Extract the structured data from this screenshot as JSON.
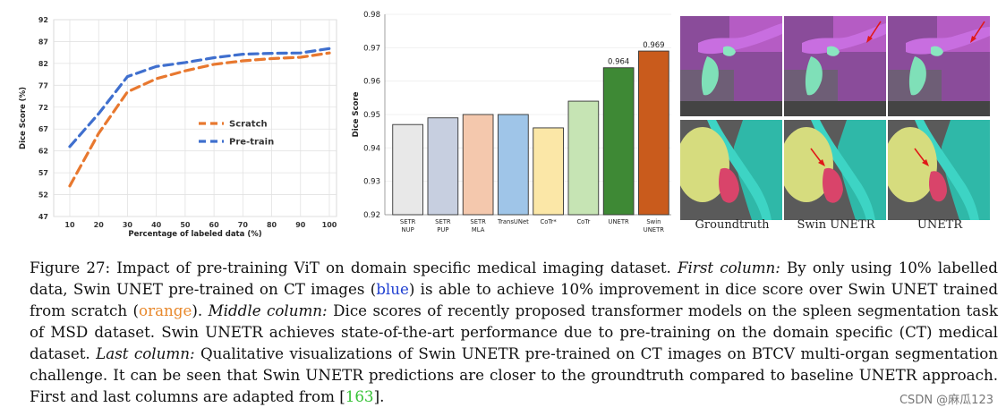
{
  "chart_data": [
    {
      "type": "line",
      "xlabel": "Percentage of labeled data (%)",
      "ylabel": "Dice Score (%)",
      "x": [
        10,
        20,
        30,
        40,
        50,
        60,
        70,
        80,
        90,
        100
      ],
      "ylim": [
        47,
        92
      ],
      "yticks": [
        47,
        52,
        57,
        62,
        67,
        72,
        77,
        82,
        87,
        92
      ],
      "grid": true,
      "legend_position": "center-right",
      "series": [
        {
          "name": "Scratch",
          "color": "#e8782f",
          "style": "dashed",
          "values": [
            54,
            66,
            75.5,
            78.5,
            80.3,
            81.8,
            82.6,
            83.1,
            83.4,
            84.4
          ]
        },
        {
          "name": "Pre-train",
          "color": "#3f6fce",
          "style": "dashed",
          "values": [
            63,
            70.5,
            79,
            81.3,
            82.2,
            83.3,
            84.1,
            84.3,
            84.4,
            85.4
          ]
        }
      ]
    },
    {
      "type": "bar",
      "ylabel": "Dice Score",
      "ylim": [
        0.92,
        0.98
      ],
      "yticks": [
        "0.92",
        "0.93",
        "0.94",
        "0.95",
        "0.96",
        "0.97",
        "0.98"
      ],
      "categories": [
        [
          "SETR",
          "NUP"
        ],
        [
          "SETR",
          "PUP"
        ],
        [
          "SETR",
          "MLA"
        ],
        [
          "TransUNet"
        ],
        [
          "CoTr*"
        ],
        [
          "CoTr"
        ],
        [
          "UNETR"
        ],
        [
          "Swin",
          "UNETR"
        ]
      ],
      "values": [
        0.947,
        0.949,
        0.95,
        0.95,
        0.946,
        0.954,
        0.964,
        0.969
      ],
      "colors": [
        "#e8e8e8",
        "#c7cfe0",
        "#f4c8ad",
        "#9fc5e8",
        "#fbe7a7",
        "#c6e4b4",
        "#3e8935",
        "#c95b1c"
      ],
      "data_labels": [
        "",
        "",
        "",
        "",
        "",
        "",
        "0.964",
        "0.969"
      ]
    }
  ],
  "image_panel": {
    "column_labels": [
      "Groundtruth",
      "Swin UNETR",
      "UNETR"
    ]
  },
  "caption": {
    "t1": "Figure 27: Impact of pre-training ViT on domain specific medical imaging dataset. ",
    "t2": "First column:",
    "t3": " By only using 10% labelled data, Swin UNET pre-trained on CT images (",
    "t4": "blue",
    "t5": ") is able to achieve 10% improvement in dice score over Swin UNET trained from scratch (",
    "t6": "orange",
    "t7": "). ",
    "t8": "Middle column:",
    "t9": " Dice scores of recently proposed transformer models on the spleen segmentation task of MSD dataset. Swin UNETR achieves state-of-the-art performance due to pre-training on the domain specific (CT) medical dataset. ",
    "t10": "Last column:",
    "t11": " Qualitative visualizations of Swin UNETR pre-trained on CT images on BTCV multi-organ segmentation challenge. It can be seen that Swin UNETR predictions are closer to the groundtruth compared to baseline UNETR approach. First and last columns are adapted from [",
    "t12": "163",
    "t13": "]."
  },
  "watermark": "CSDN @麻瓜123"
}
